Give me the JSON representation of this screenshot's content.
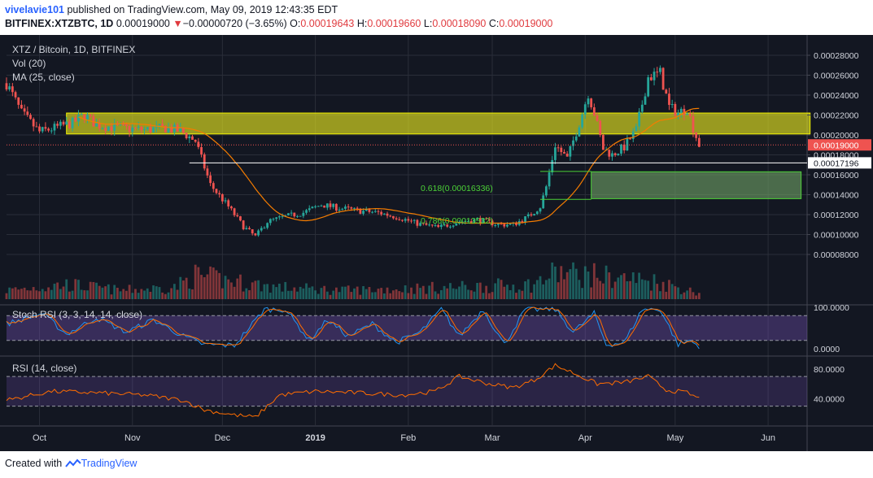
{
  "header": {
    "author": "vivelavie101",
    "published_text": "published on TradingView.com, May 09, 2019 12:43:35 EDT",
    "symbol": "BITFINEX:XTZBTC, 1D",
    "last": "0.00019000",
    "change_arrow": "▼",
    "change": "−0.00000720 (−3.65%)",
    "o_label": "O:",
    "o_value": "0.00019643",
    "h_label": "H:",
    "h_value": "0.00019660",
    "l_label": "L:",
    "l_value": "0.00018090",
    "c_label": "C:",
    "c_value": "0.00019000"
  },
  "footer": {
    "created_with": "Created with",
    "brand": "TradingView"
  },
  "colors": {
    "up": "#26a69a",
    "down": "#ef5350",
    "ma": "#f57c00",
    "stoch_k": "#2196f3",
    "stoch_d": "#ff6d00",
    "rsi": "#ff6d00",
    "background": "#131722"
  },
  "chart_data": {
    "type": "candlestick",
    "title": "XTZ / Bitcoin, 1D, BITFINEX",
    "legend": [
      "Vol (20)",
      "MA (25, close)"
    ],
    "price_axis": {
      "ticks": [
        "0.00028000",
        "0.00026000",
        "0.00024000",
        "0.00022000",
        "0.00020000",
        "0.00018000",
        "0.00016000",
        "0.00014000",
        "0.00012000",
        "0.00010000",
        "0.00008000"
      ],
      "last_price_label": "0.00019000",
      "crosshair_label": "0.00017196"
    },
    "x_axis": {
      "ticks": [
        "Oct",
        "Nov",
        "Dec",
        "2019",
        "Feb",
        "Mar",
        "Apr",
        "May",
        "Jun"
      ]
    },
    "price_path": [
      [
        "2018-09-20",
        0.000252
      ],
      [
        "2018-09-25",
        0.000222
      ],
      [
        "2018-10-01",
        0.000203
      ],
      [
        "2018-10-06",
        0.000207
      ],
      [
        "2018-10-12",
        0.000212
      ],
      [
        "2018-10-16",
        0.00022
      ],
      [
        "2018-10-20",
        0.00021
      ],
      [
        "2018-10-28",
        0.000207
      ],
      [
        "2018-11-05",
        0.000205
      ],
      [
        "2018-11-12",
        0.000207
      ],
      [
        "2018-11-17",
        0.000204
      ],
      [
        "2018-11-22",
        0.000194
      ],
      [
        "2018-11-27",
        0.00015
      ],
      [
        "2018-12-03",
        0.000128
      ],
      [
        "2018-12-08",
        0.000108
      ],
      [
        "2018-12-12",
        9.8e-05
      ],
      [
        "2018-12-16",
        0.000113
      ],
      [
        "2018-12-22",
        0.000118
      ],
      [
        "2018-12-28",
        0.000122
      ],
      [
        "2019-01-03",
        0.00013
      ],
      [
        "2019-01-08",
        0.000127
      ],
      [
        "2019-01-15",
        0.000124
      ],
      [
        "2019-01-22",
        0.000122
      ],
      [
        "2019-01-29",
        0.000117
      ],
      [
        "2019-02-04",
        0.000111
      ],
      [
        "2019-02-11",
        0.000107
      ],
      [
        "2019-02-18",
        0.000113
      ],
      [
        "2019-02-24",
        0.000115
      ],
      [
        "2019-03-03",
        0.00011
      ],
      [
        "2019-03-08",
        0.00011
      ],
      [
        "2019-03-13",
        0.000118
      ],
      [
        "2019-03-17",
        0.000128
      ],
      [
        "2019-03-19",
        0.000148
      ],
      [
        "2019-03-22",
        0.00019
      ],
      [
        "2019-03-26",
        0.000176
      ],
      [
        "2019-03-30",
        0.000212
      ],
      [
        "2019-04-02",
        0.000242
      ],
      [
        "2019-04-04",
        0.000222
      ],
      [
        "2019-04-07",
        0.000186
      ],
      [
        "2019-04-10",
        0.00018
      ],
      [
        "2019-04-14",
        0.000188
      ],
      [
        "2019-04-18",
        0.000205
      ],
      [
        "2019-04-22",
        0.000258
      ],
      [
        "2019-04-26",
        0.000262
      ],
      [
        "2019-04-29",
        0.000228
      ],
      [
        "2019-05-02",
        0.000222
      ],
      [
        "2019-05-05",
        0.000227
      ],
      [
        "2019-05-07",
        0.000207
      ],
      [
        "2019-05-09",
        0.00019
      ]
    ],
    "resistance_zone": [
      0.000201,
      0.000222
    ],
    "demand_zone": [
      0.000136,
      0.000163
    ],
    "horizontal_line": 0.00017196,
    "fibonacci": [
      {
        "label": "0.618(0.00016336)",
        "value": 0.00016336
      },
      {
        "label": "0.786(0.00013532)",
        "value": 0.00013532
      }
    ],
    "stoch_rsi": {
      "title": "Stoch RSI (3, 3, 14, 14, close)",
      "ticks": [
        "100.0000",
        "0.0000"
      ],
      "upper_band": 80,
      "lower_band": 20,
      "k_path": [
        [
          "2018-09-20",
          60
        ],
        [
          "2018-10-02",
          85
        ],
        [
          "2018-10-10",
          35
        ],
        [
          "2018-10-20",
          75
        ],
        [
          "2018-10-30",
          40
        ],
        [
          "2018-11-08",
          70
        ],
        [
          "2018-11-18",
          30
        ],
        [
          "2018-11-25",
          10
        ],
        [
          "2018-12-05",
          8
        ],
        [
          "2018-12-15",
          95
        ],
        [
          "2018-12-22",
          95
        ],
        [
          "2018-12-30",
          20
        ],
        [
          "2019-01-05",
          70
        ],
        [
          "2019-01-12",
          30
        ],
        [
          "2019-01-20",
          60
        ],
        [
          "2019-01-28",
          15
        ],
        [
          "2019-02-05",
          40
        ],
        [
          "2019-02-12",
          95
        ],
        [
          "2019-02-18",
          30
        ],
        [
          "2019-02-26",
          95
        ],
        [
          "2019-03-05",
          10
        ],
        [
          "2019-03-12",
          95
        ],
        [
          "2019-03-22",
          95
        ],
        [
          "2019-03-28",
          40
        ],
        [
          "2019-04-04",
          85
        ],
        [
          "2019-04-08",
          10
        ],
        [
          "2019-04-14",
          15
        ],
        [
          "2019-04-20",
          95
        ],
        [
          "2019-04-26",
          95
        ],
        [
          "2019-05-02",
          10
        ],
        [
          "2019-05-06",
          20
        ],
        [
          "2019-05-09",
          5
        ]
      ]
    },
    "rsi": {
      "title": "RSI (14, close)",
      "ticks": [
        "80.0000",
        "40.0000"
      ],
      "upper_band": 70,
      "lower_band": 30,
      "path": [
        [
          "2018-09-20",
          38
        ],
        [
          "2018-10-05",
          50
        ],
        [
          "2018-10-20",
          48
        ],
        [
          "2018-11-05",
          45
        ],
        [
          "2018-11-18",
          38
        ],
        [
          "2018-11-25",
          25
        ],
        [
          "2018-12-05",
          18
        ],
        [
          "2018-12-12",
          15
        ],
        [
          "2018-12-20",
          45
        ],
        [
          "2019-01-01",
          50
        ],
        [
          "2019-01-15",
          48
        ],
        [
          "2019-01-30",
          45
        ],
        [
          "2019-02-10",
          50
        ],
        [
          "2019-02-18",
          70
        ],
        [
          "2019-02-28",
          60
        ],
        [
          "2019-03-08",
          55
        ],
        [
          "2019-03-15",
          65
        ],
        [
          "2019-03-22",
          85
        ],
        [
          "2019-03-28",
          75
        ],
        [
          "2019-04-05",
          60
        ],
        [
          "2019-04-14",
          62
        ],
        [
          "2019-04-22",
          70
        ],
        [
          "2019-04-28",
          52
        ],
        [
          "2019-05-05",
          48
        ],
        [
          "2019-05-09",
          40
        ]
      ]
    },
    "volume_path": [
      [
        "2018-09-20",
        0.3
      ],
      [
        "2018-10-10",
        0.5
      ],
      [
        "2018-10-28",
        0.3
      ],
      [
        "2018-11-15",
        0.4
      ],
      [
        "2018-11-22",
        0.8
      ],
      [
        "2018-12-05",
        0.6
      ],
      [
        "2018-12-20",
        0.4
      ],
      [
        "2019-01-10",
        0.3
      ],
      [
        "2019-02-15",
        0.4
      ],
      [
        "2019-03-15",
        0.5
      ],
      [
        "2019-03-22",
        0.9
      ],
      [
        "2019-04-05",
        0.8
      ],
      [
        "2019-04-25",
        0.6
      ],
      [
        "2019-05-09",
        0.2
      ]
    ]
  }
}
